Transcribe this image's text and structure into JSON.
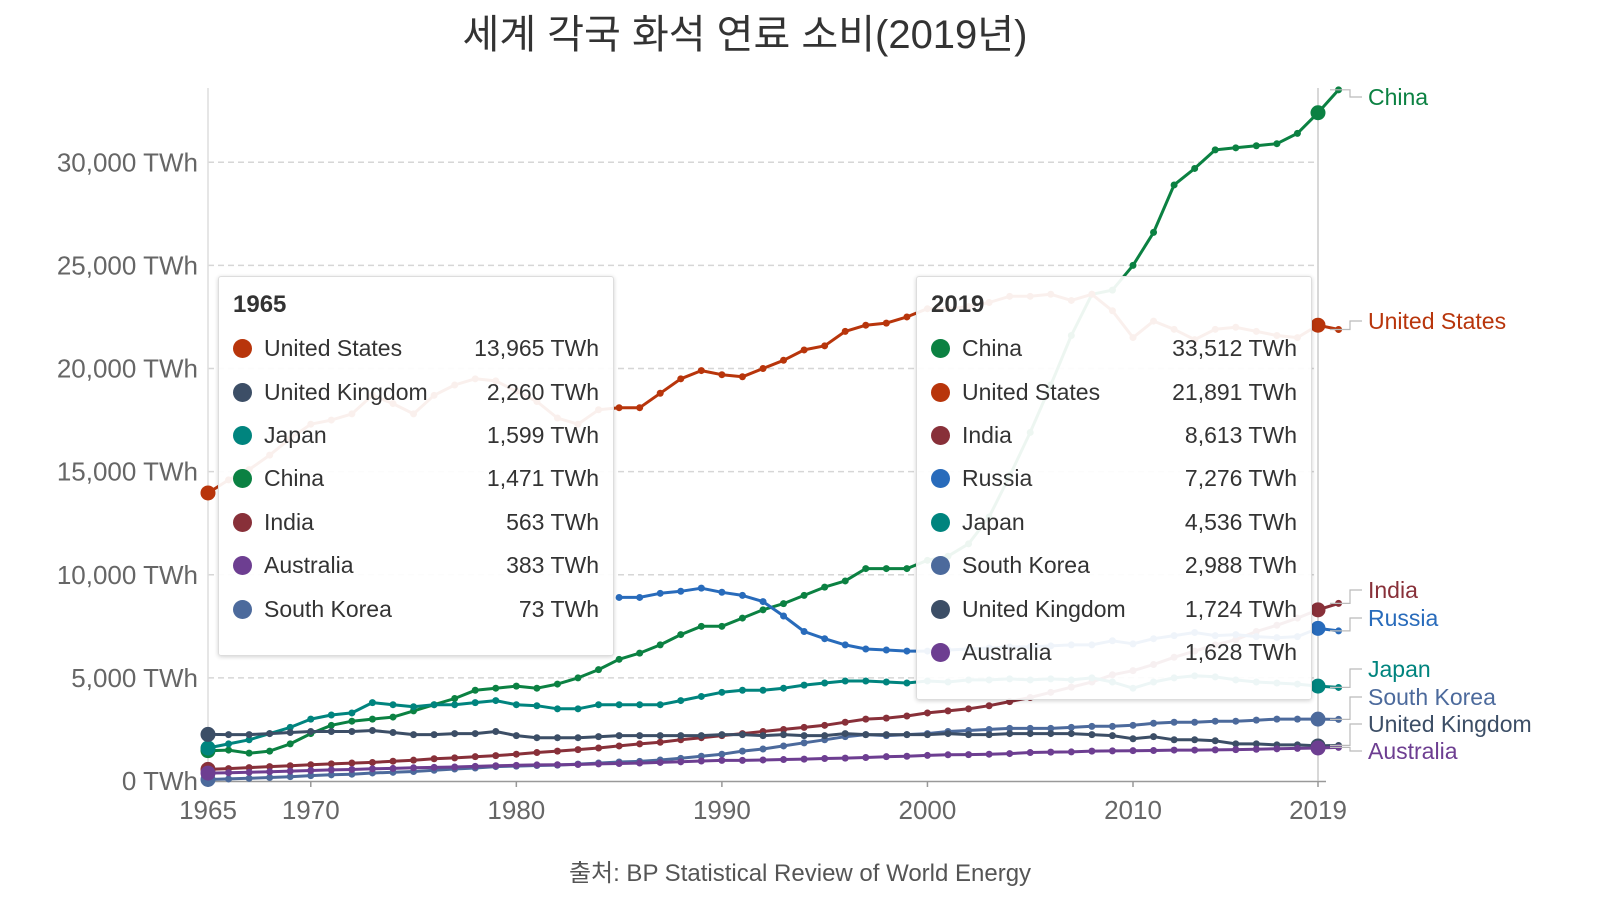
{
  "title": "세계 각국 화석 연료 소비(2019년)",
  "source": "출처: BP Statistical Review of World Energy",
  "chart_data": {
    "type": "line",
    "title": "세계 각국 화석 연료 소비(2019년)",
    "unit": "TWh",
    "ylim": [
      0,
      33600
    ],
    "xlim": [
      1965,
      2019
    ],
    "y_ticks": [
      0,
      5000,
      10000,
      15000,
      20000,
      25000,
      30000
    ],
    "y_tick_labels": [
      "0 TWh",
      "5,000 TWh",
      "10,000 TWh",
      "15,000 TWh",
      "20,000 TWh",
      "25,000 TWh",
      "30,000 TWh"
    ],
    "x_ticks": [
      1965,
      1970,
      1980,
      1990,
      2000,
      2010,
      2019
    ],
    "x_tick_labels": [
      "1965",
      "1970",
      "1980",
      "1990",
      "2000",
      "2010",
      "2019"
    ],
    "grid": "horizontal-dashed",
    "series": [
      {
        "name": "China",
        "color": "#0b8142",
        "values": [
          1471,
          1500,
          1350,
          1450,
          1800,
          2300,
          2700,
          2900,
          3000,
          3100,
          3400,
          3700,
          4000,
          4400,
          4500,
          4600,
          4500,
          4700,
          5000,
          5400,
          5900,
          6200,
          6600,
          7100,
          7500,
          7500,
          7900,
          8300,
          8600,
          9000,
          9400,
          9700,
          10300,
          10300,
          10300,
          10700,
          10900,
          11500,
          12800,
          14800,
          16900,
          19200,
          21600,
          23600,
          23800,
          25000,
          26600,
          28900,
          29700,
          30600,
          30700,
          30800,
          30900,
          31400,
          32400,
          33512
        ]
      },
      {
        "name": "United States",
        "color": "#b8350b",
        "values": [
          13965,
          14600,
          15100,
          15800,
          16600,
          17300,
          17500,
          17800,
          18700,
          18300,
          17800,
          18700,
          19200,
          19500,
          19400,
          18900,
          18400,
          17600,
          17300,
          18000,
          18100,
          18100,
          18800,
          19500,
          19900,
          19700,
          19600,
          20000,
          20400,
          20900,
          21100,
          21800,
          22100,
          22200,
          22500,
          22900,
          22900,
          23000,
          23200,
          23500,
          23500,
          23600,
          23300,
          23600,
          22800,
          21500,
          22300,
          21900,
          21400,
          21900,
          22000,
          21800,
          21600,
          21500,
          22100,
          21891
        ]
      },
      {
        "name": "India",
        "color": "#883039",
        "values": [
          563,
          600,
          650,
          700,
          740,
          790,
          830,
          870,
          900,
          960,
          1010,
          1080,
          1120,
          1180,
          1230,
          1300,
          1380,
          1450,
          1520,
          1600,
          1700,
          1800,
          1880,
          2000,
          2100,
          2200,
          2300,
          2400,
          2500,
          2600,
          2700,
          2850,
          3000,
          3050,
          3150,
          3300,
          3400,
          3500,
          3650,
          3850,
          4050,
          4300,
          4550,
          4800,
          5150,
          5350,
          5650,
          6000,
          6300,
          6600,
          6850,
          7250,
          7550,
          7900,
          8300,
          8613
        ]
      },
      {
        "name": "Russia",
        "color": "#286bbb",
        "values": [
          null,
          null,
          null,
          null,
          null,
          null,
          null,
          null,
          null,
          null,
          null,
          null,
          null,
          null,
          null,
          null,
          null,
          null,
          null,
          null,
          8900,
          8900,
          9100,
          9200,
          9350,
          9150,
          9000,
          8700,
          8000,
          7250,
          6900,
          6600,
          6400,
          6350,
          6300,
          6300,
          6350,
          6400,
          6450,
          6500,
          6500,
          6550,
          6600,
          6600,
          6800,
          6650,
          6900,
          7050,
          7200,
          7050,
          7100,
          7000,
          6950,
          7000,
          7400,
          7276
        ]
      },
      {
        "name": "Japan",
        "color": "#00847e",
        "values": [
          1599,
          1800,
          2000,
          2300,
          2600,
          3000,
          3200,
          3300,
          3800,
          3700,
          3600,
          3700,
          3700,
          3800,
          3900,
          3700,
          3650,
          3500,
          3500,
          3700,
          3700,
          3700,
          3700,
          3900,
          4100,
          4300,
          4400,
          4400,
          4500,
          4650,
          4750,
          4850,
          4850,
          4800,
          4750,
          4850,
          4800,
          4900,
          4900,
          4950,
          4900,
          4950,
          4900,
          5000,
          4800,
          4500,
          4800,
          5000,
          5100,
          5050,
          4900,
          4800,
          4750,
          4700,
          4600,
          4536
        ]
      },
      {
        "name": "South Korea",
        "color": "#4c6a9c",
        "values": [
          73,
          100,
          130,
          170,
          210,
          260,
          300,
          330,
          390,
          420,
          460,
          520,
          580,
          630,
          700,
          720,
          750,
          770,
          820,
          870,
          920,
          950,
          1020,
          1100,
          1200,
          1300,
          1450,
          1550,
          1700,
          1850,
          2000,
          2150,
          2250,
          2200,
          2250,
          2300,
          2400,
          2450,
          2500,
          2550,
          2550,
          2550,
          2600,
          2650,
          2650,
          2700,
          2800,
          2850,
          2850,
          2900,
          2900,
          2950,
          3000,
          3000,
          3000,
          2988
        ]
      },
      {
        "name": "United Kingdom",
        "color": "#3c4e66",
        "values": [
          2260,
          2250,
          2250,
          2300,
          2350,
          2400,
          2400,
          2400,
          2450,
          2350,
          2250,
          2250,
          2300,
          2300,
          2400,
          2200,
          2100,
          2100,
          2100,
          2150,
          2200,
          2200,
          2200,
          2200,
          2200,
          2250,
          2250,
          2200,
          2250,
          2200,
          2200,
          2300,
          2250,
          2250,
          2250,
          2250,
          2300,
          2250,
          2250,
          2300,
          2300,
          2300,
          2300,
          2250,
          2200,
          2050,
          2150,
          2000,
          2000,
          1950,
          1800,
          1800,
          1750,
          1750,
          1700,
          1724
        ]
      },
      {
        "name": "Australia",
        "color": "#6d3e91",
        "values": [
          383,
          400,
          420,
          450,
          480,
          510,
          540,
          560,
          590,
          610,
          640,
          660,
          680,
          710,
          740,
          760,
          780,
          790,
          800,
          830,
          850,
          870,
          900,
          930,
          970,
          1000,
          1000,
          1020,
          1040,
          1060,
          1090,
          1110,
          1140,
          1180,
          1200,
          1240,
          1270,
          1280,
          1300,
          1330,
          1380,
          1400,
          1410,
          1450,
          1460,
          1470,
          1480,
          1500,
          1500,
          1510,
          1520,
          1540,
          1560,
          1580,
          1600,
          1628
        ]
      }
    ],
    "end_labels": [
      {
        "name": "China",
        "value": 33512
      },
      {
        "name": "United States",
        "value": 21891
      },
      {
        "name": "India",
        "value": 8613
      },
      {
        "name": "Russia",
        "value": 7276
      },
      {
        "name": "Japan",
        "value": 4536
      },
      {
        "name": "South Korea",
        "value": 2988
      },
      {
        "name": "United Kingdom",
        "value": 1724
      },
      {
        "name": "Australia",
        "value": 1628
      }
    ],
    "tooltips": [
      {
        "year": "1965",
        "rows": [
          {
            "name": "United States",
            "value": "13,965 TWh",
            "color": "#b8350b"
          },
          {
            "name": "United Kingdom",
            "value": "2,260 TWh",
            "color": "#3c4e66"
          },
          {
            "name": "Japan",
            "value": "1,599 TWh",
            "color": "#00847e"
          },
          {
            "name": "China",
            "value": "1,471 TWh",
            "color": "#0b8142"
          },
          {
            "name": "India",
            "value": "563 TWh",
            "color": "#883039"
          },
          {
            "name": "Australia",
            "value": "383 TWh",
            "color": "#6d3e91"
          },
          {
            "name": "South Korea",
            "value": "73 TWh",
            "color": "#4c6a9c"
          }
        ]
      },
      {
        "year": "2019",
        "rows": [
          {
            "name": "China",
            "value": "33,512 TWh",
            "color": "#0b8142"
          },
          {
            "name": "United States",
            "value": "21,891 TWh",
            "color": "#b8350b"
          },
          {
            "name": "India",
            "value": "8,613 TWh",
            "color": "#883039"
          },
          {
            "name": "Russia",
            "value": "7,276 TWh",
            "color": "#286bbb"
          },
          {
            "name": "Japan",
            "value": "4,536 TWh",
            "color": "#00847e"
          },
          {
            "name": "South Korea",
            "value": "2,988 TWh",
            "color": "#4c6a9c"
          },
          {
            "name": "United Kingdom",
            "value": "1,724 TWh",
            "color": "#3c4e66"
          },
          {
            "name": "Australia",
            "value": "1,628 TWh",
            "color": "#6d3e91"
          }
        ]
      }
    ]
  }
}
